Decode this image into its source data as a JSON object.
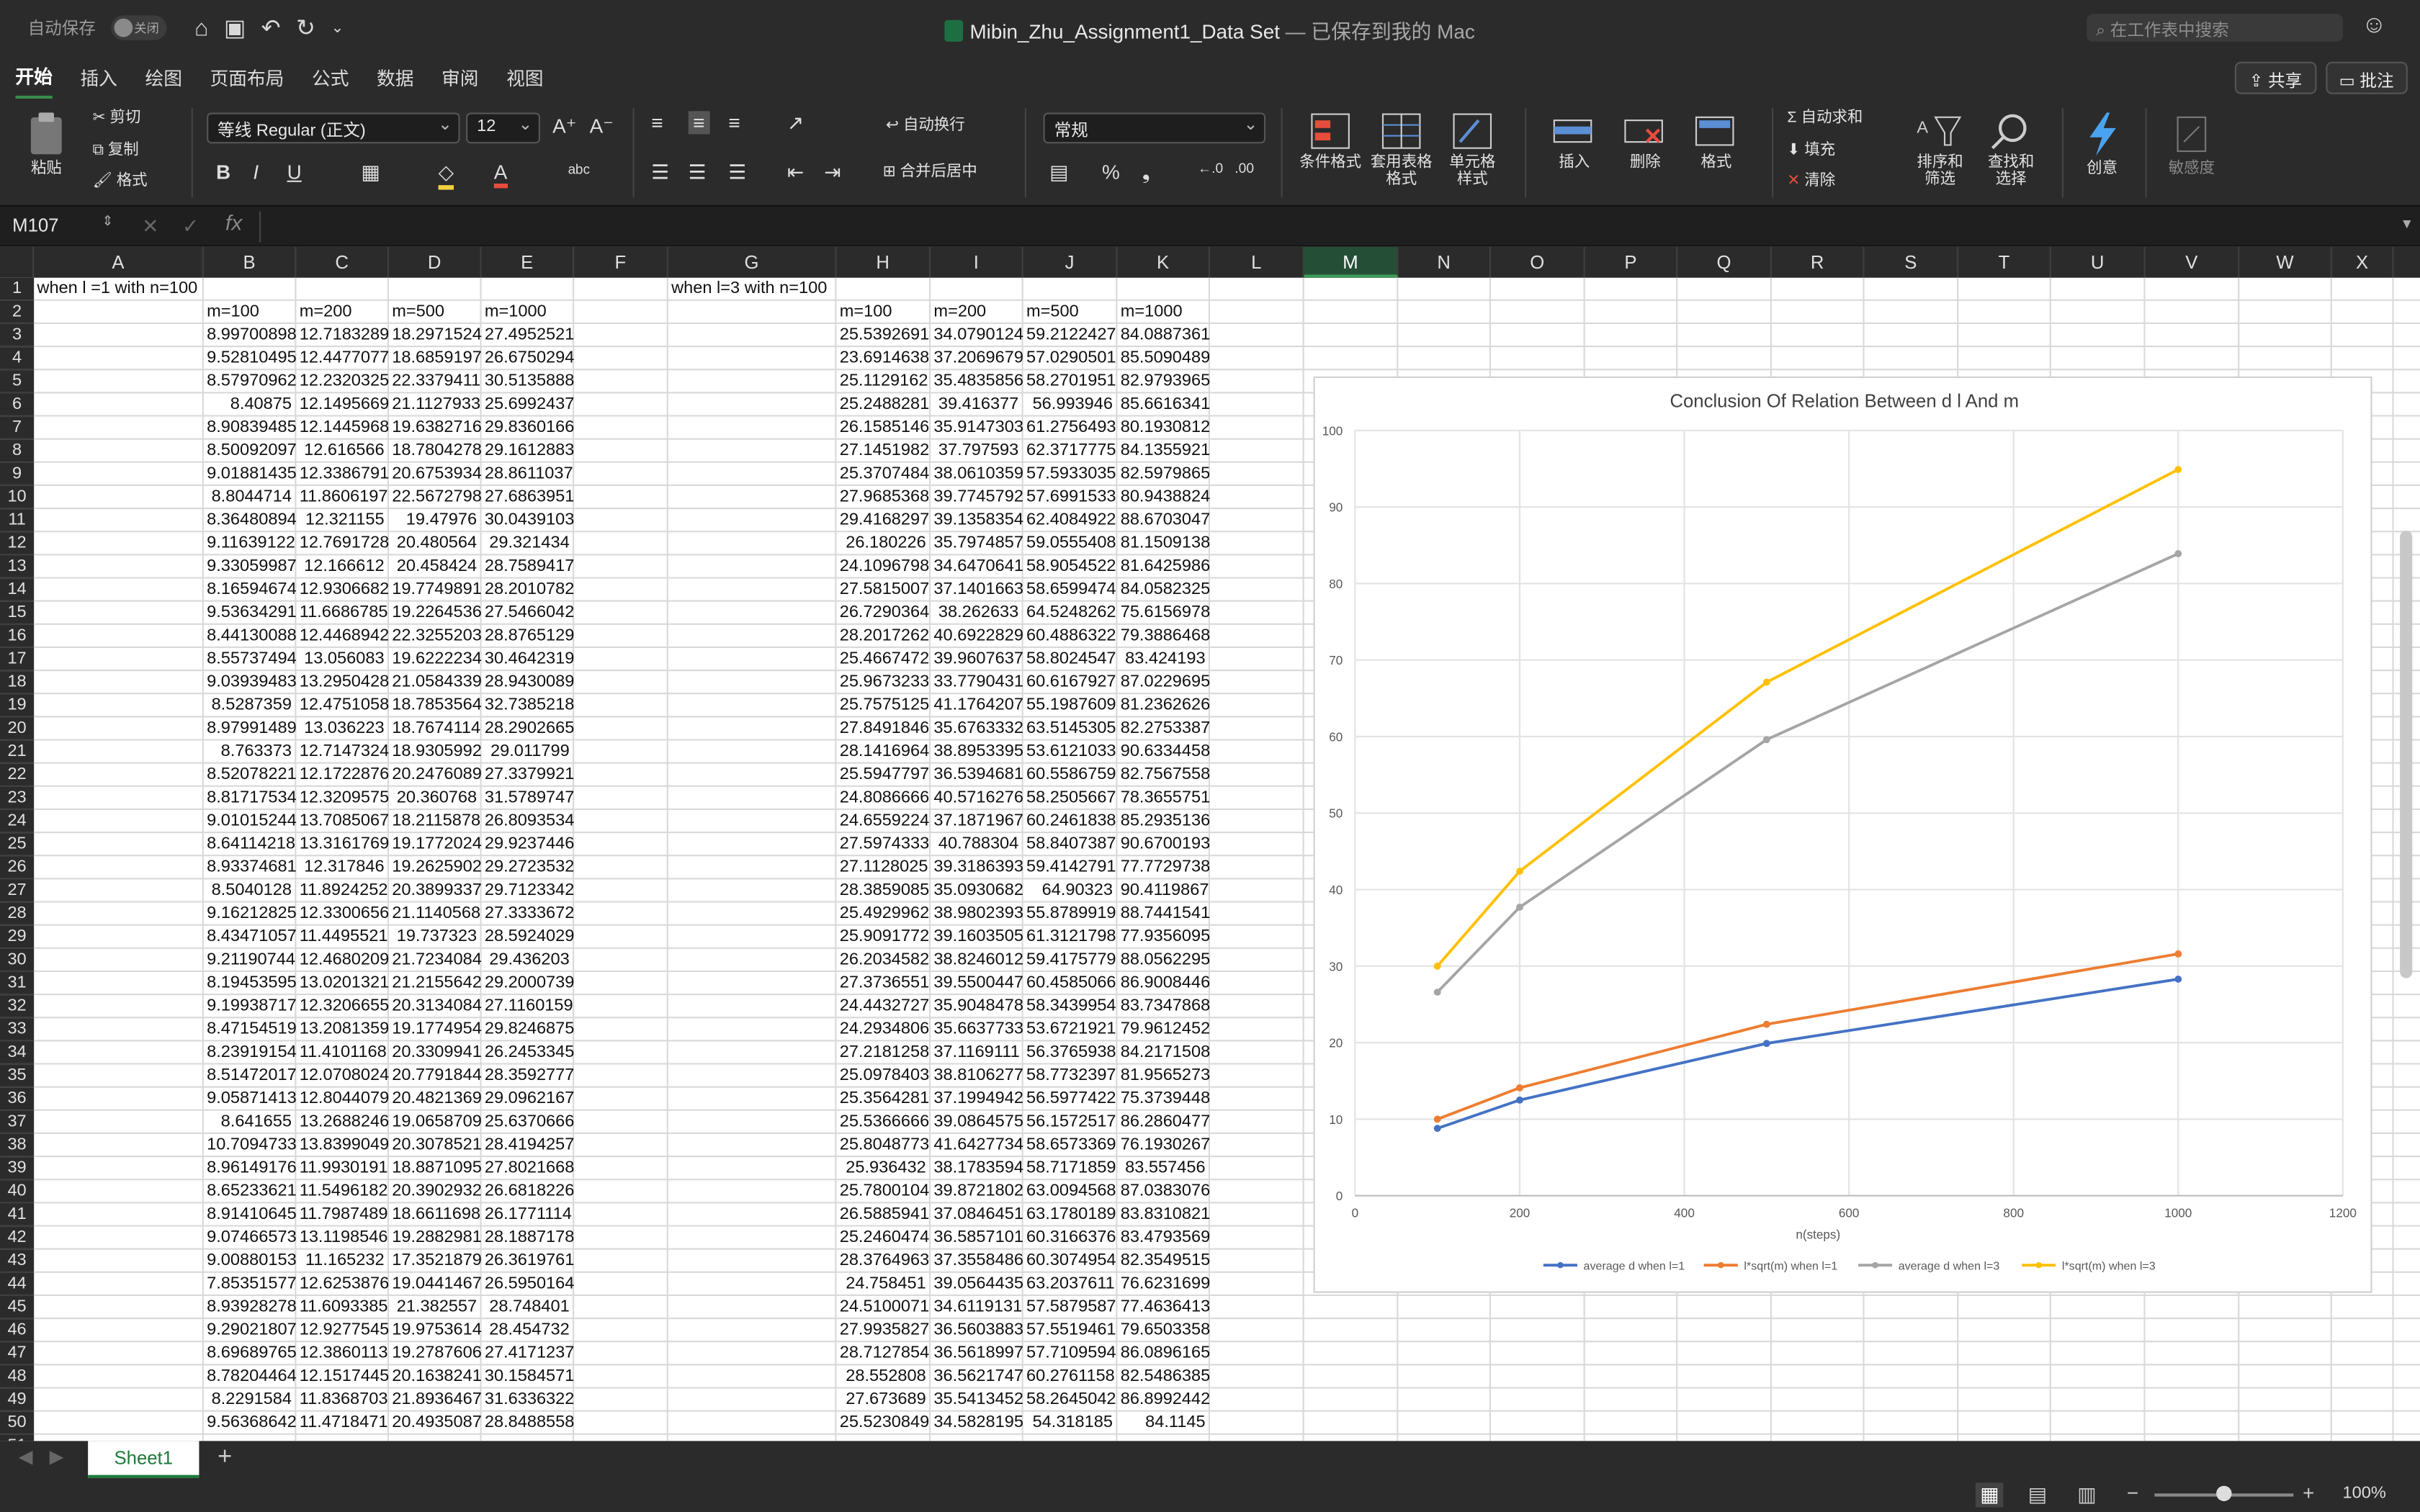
{
  "titlebar": {
    "autosave": "自动保存",
    "autosave_state": "关闭",
    "doc_name": "Mibin_Zhu_Assignment1_Data Set",
    "doc_status": " — 已保存到我的 Mac",
    "search_placeholder": "在工作表中搜索"
  },
  "tabs": [
    "开始",
    "插入",
    "绘图",
    "页面布局",
    "公式",
    "数据",
    "审阅",
    "视图"
  ],
  "tab_right": {
    "share": "共享",
    "comment": "批注"
  },
  "ribbon": {
    "paste": "粘贴",
    "cut": "剪切",
    "copy": "复制",
    "format_painter": "格式",
    "font_name": "等线 Regular (正文)",
    "font_size": "12",
    "wrap": "自动换行",
    "merge": "合并后居中",
    "number_format": "常规",
    "cond_format": "条件格式",
    "table_format": "套用表格格式",
    "cell_style": "单元格样式",
    "insert": "插入",
    "delete": "删除",
    "format": "格式",
    "autosum": "自动求和",
    "fill": "填充",
    "clear": "清除",
    "sort_filter": "排序和筛选",
    "find_select": "查找和选择",
    "ideas": "创意",
    "sensitivity": "敏感度"
  },
  "formula_bar": {
    "name_box": "M107",
    "fx": "fx"
  },
  "columns": [
    "A",
    "B",
    "C",
    "D",
    "E",
    "F",
    "G",
    "H",
    "I",
    "J",
    "K",
    "L",
    "M",
    "N",
    "O",
    "P",
    "Q",
    "R",
    "S",
    "T",
    "U",
    "V",
    "W",
    "X"
  ],
  "rows": [
    "1",
    "2",
    "3",
    "4",
    "5",
    "6",
    "7",
    "8",
    "9",
    "10",
    "11",
    "12",
    "13",
    "14",
    "15",
    "16",
    "17",
    "18",
    "19",
    "20",
    "21",
    "22",
    "23",
    "24",
    "25",
    "26",
    "27",
    "28",
    "29",
    "30",
    "31",
    "32",
    "33",
    "34",
    "35",
    "36",
    "37",
    "38",
    "39",
    "40",
    "41",
    "42",
    "43",
    "44",
    "45",
    "46",
    "47",
    "48",
    "49",
    "50",
    "51"
  ],
  "labels": {
    "a1": "when l =1 with n=100",
    "g1": "when l=3 with n=100",
    "hdr_left": [
      "m=100",
      "m=200",
      "m=500",
      "m=1000"
    ],
    "hdr_right": [
      "m=100",
      "m=200",
      "m=500",
      "m=1000"
    ]
  },
  "data_left": [
    [
      "8.99700898",
      "12.7183289",
      "18.2971524",
      "27.4952521"
    ],
    [
      "9.52810495",
      "12.4477077",
      "18.6859197",
      "26.6750294"
    ],
    [
      "8.57970962",
      "12.2320325",
      "22.3379411",
      "30.5135888"
    ],
    [
      "8.40875",
      "12.1495669",
      "21.1127933",
      "25.6992437"
    ],
    [
      "8.90839485",
      "12.1445968",
      "19.6382716",
      "29.8360166"
    ],
    [
      "8.50092097",
      "12.616566",
      "18.7804278",
      "29.1612883"
    ],
    [
      "9.01881435",
      "12.3386791",
      "20.6753934",
      "28.8611037"
    ],
    [
      "8.8044714",
      "11.8606197",
      "22.5672798",
      "27.6863951"
    ],
    [
      "8.36480894",
      "12.321155",
      "19.47976",
      "30.0439103"
    ],
    [
      "9.11639122",
      "12.7691728",
      "20.480564",
      "29.321434"
    ],
    [
      "9.33059987",
      "12.166612",
      "20.458424",
      "28.7589417"
    ],
    [
      "8.16594674",
      "12.9306682",
      "19.7749891",
      "28.2010782"
    ],
    [
      "9.53634291",
      "11.6686785",
      "19.2264536",
      "27.5466042"
    ],
    [
      "8.44130088",
      "12.4468942",
      "22.3255203",
      "28.8765129"
    ],
    [
      "8.55737494",
      "13.056083",
      "19.6222234",
      "30.4642319"
    ],
    [
      "9.03939483",
      "13.2950428",
      "21.0584339",
      "28.9430089"
    ],
    [
      "8.5287359",
      "12.4751058",
      "18.7853564",
      "32.7385218"
    ],
    [
      "8.97991489",
      "13.036223",
      "18.7674114",
      "28.2902665"
    ],
    [
      "8.763373",
      "12.7147324",
      "18.9305992",
      "29.011799"
    ],
    [
      "8.52078221",
      "12.1722876",
      "20.2476089",
      "27.3379921"
    ],
    [
      "8.81717534",
      "12.3209575",
      "20.360768",
      "31.5789747"
    ],
    [
      "9.01015244",
      "13.7085067",
      "18.2115878",
      "26.8093534"
    ],
    [
      "8.64114218",
      "13.3161769",
      "19.1772024",
      "29.9237446"
    ],
    [
      "8.93374681",
      "12.317846",
      "19.2625902",
      "29.2723532"
    ],
    [
      "8.5040128",
      "11.8924252",
      "20.3899337",
      "29.7123342"
    ],
    [
      "9.16212825",
      "12.3300656",
      "21.1140568",
      "27.3333672"
    ],
    [
      "8.43471057",
      "11.4495521",
      "19.737323",
      "28.5924029"
    ],
    [
      "9.21190744",
      "12.4680209",
      "21.7234084",
      "29.436203"
    ],
    [
      "8.19453595",
      "13.0201321",
      "21.2155642",
      "29.2000739"
    ],
    [
      "9.19938717",
      "12.3206655",
      "20.3134084",
      "27.1160159"
    ],
    [
      "8.47154519",
      "13.2081359",
      "19.1774954",
      "29.8246875"
    ],
    [
      "8.23919154",
      "11.4101168",
      "20.3309941",
      "26.2453345"
    ],
    [
      "8.51472017",
      "12.0708024",
      "20.7791844",
      "28.3592777"
    ],
    [
      "9.05871413",
      "12.8044079",
      "20.4821369",
      "29.0962167"
    ],
    [
      "8.641655",
      "13.2688246",
      "19.0658709",
      "25.6370666"
    ],
    [
      "10.7094733",
      "13.8399049",
      "20.3078521",
      "28.4194257"
    ],
    [
      "8.96149176",
      "11.9930191",
      "18.8871095",
      "27.8021668"
    ],
    [
      "8.65233621",
      "11.5496182",
      "20.3902932",
      "26.6818226"
    ],
    [
      "8.91410645",
      "11.7987489",
      "18.6611698",
      "26.1771114"
    ],
    [
      "9.07466573",
      "13.1198546",
      "19.2882981",
      "28.1887178"
    ],
    [
      "9.00880153",
      "11.165232",
      "17.3521879",
      "26.3619761"
    ],
    [
      "7.85351577",
      "12.6253876",
      "19.0441467",
      "26.5950164"
    ],
    [
      "8.93928278",
      "11.6093385",
      "21.382557",
      "28.748401"
    ],
    [
      "9.29021807",
      "12.9277545",
      "19.9753614",
      "28.454732"
    ],
    [
      "8.69689765",
      "12.3860113",
      "19.2787606",
      "27.4171237"
    ],
    [
      "8.78204464",
      "12.1517445",
      "20.1638241",
      "30.1584571"
    ],
    [
      "8.2291584",
      "11.8368703",
      "21.8936467",
      "31.6336322"
    ],
    [
      "9.56368642",
      "11.4718471",
      "20.4935087",
      "28.8488558"
    ]
  ],
  "data_right": [
    [
      "25.5392691",
      "34.0790124",
      "59.2122427",
      "84.0887361"
    ],
    [
      "23.6914638",
      "37.2069679",
      "57.0290501",
      "85.5090489"
    ],
    [
      "25.1129162",
      "35.4835856",
      "58.2701951",
      "82.9793965"
    ],
    [
      "25.2488281",
      "39.416377",
      "56.993946",
      "85.6616341"
    ],
    [
      "26.1585146",
      "35.9147303",
      "61.2756493",
      "80.1930812"
    ],
    [
      "27.1451982",
      "37.797593",
      "62.3717775",
      "84.1355921"
    ],
    [
      "25.3707484",
      "38.0610359",
      "57.5933035",
      "82.5979865"
    ],
    [
      "27.9685368",
      "39.7745792",
      "57.6991533",
      "80.9438824"
    ],
    [
      "29.4168297",
      "39.1358354",
      "62.4084922",
      "88.6703047"
    ],
    [
      "26.180226",
      "35.7974857",
      "59.0555408",
      "81.1509138"
    ],
    [
      "24.1096798",
      "34.6470641",
      "58.9054522",
      "81.6425986"
    ],
    [
      "27.5815007",
      "37.1401663",
      "58.6599474",
      "84.0582325"
    ],
    [
      "26.7290364",
      "38.262633",
      "64.5248262",
      "75.6156978"
    ],
    [
      "28.2017262",
      "40.6922829",
      "60.4886322",
      "79.3886468"
    ],
    [
      "25.4667472",
      "39.9607637",
      "58.8024547",
      "83.424193"
    ],
    [
      "25.9673233",
      "33.7790431",
      "60.6167927",
      "87.0229695"
    ],
    [
      "25.7575125",
      "41.1764207",
      "55.1987609",
      "81.2362626"
    ],
    [
      "27.8491846",
      "35.6763332",
      "63.5145305",
      "82.2753387"
    ],
    [
      "28.1416964",
      "38.8953395",
      "53.6121033",
      "90.6334458"
    ],
    [
      "25.5947797",
      "36.5394681",
      "60.5586759",
      "82.7567558"
    ],
    [
      "24.8086666",
      "40.5716276",
      "58.2505667",
      "78.3655751"
    ],
    [
      "24.6559224",
      "37.1871967",
      "60.2461838",
      "85.2935136"
    ],
    [
      "27.5974333",
      "40.788304",
      "58.8407387",
      "90.6700193"
    ],
    [
      "27.1128025",
      "39.3186393",
      "59.4142791",
      "77.7729738"
    ],
    [
      "28.3859085",
      "35.0930682",
      "64.90323",
      "90.4119867"
    ],
    [
      "25.4929962",
      "38.9802393",
      "55.8789919",
      "88.7441541"
    ],
    [
      "25.9091772",
      "39.1603505",
      "61.3121798",
      "77.9356095"
    ],
    [
      "26.2034582",
      "38.8246012",
      "59.4175779",
      "88.0562295"
    ],
    [
      "27.3736551",
      "39.5500447",
      "60.4585066",
      "86.9008446"
    ],
    [
      "24.4432727",
      "35.9048478",
      "58.3439954",
      "83.7347868"
    ],
    [
      "24.2934806",
      "35.6637733",
      "53.6721921",
      "79.9612452"
    ],
    [
      "27.2181258",
      "37.1169111",
      "56.3765938",
      "84.2171508"
    ],
    [
      "25.0978403",
      "38.8106277",
      "58.7732397",
      "81.9565273"
    ],
    [
      "25.3564281",
      "37.1994942",
      "56.5977422",
      "75.3739448"
    ],
    [
      "25.5366666",
      "39.0864575",
      "56.1572517",
      "86.2860477"
    ],
    [
      "25.8048773",
      "41.6427734",
      "58.6573369",
      "76.1930267"
    ],
    [
      "25.936432",
      "38.1783594",
      "58.7171859",
      "83.557456"
    ],
    [
      "25.7800104",
      "39.8721802",
      "63.0094568",
      "87.0383076"
    ],
    [
      "26.5885941",
      "37.0846451",
      "63.1780189",
      "83.8310821"
    ],
    [
      "25.2460474",
      "36.5857101",
      "60.3166376",
      "83.4793569"
    ],
    [
      "28.3764963",
      "37.3558486",
      "60.3074954",
      "82.3549515"
    ],
    [
      "24.758451",
      "39.0564435",
      "63.2037611",
      "76.6231699"
    ],
    [
      "24.5100071",
      "34.6119131",
      "57.5879587",
      "77.4636413"
    ],
    [
      "27.9935827",
      "36.5603883",
      "57.5519461",
      "79.6503358"
    ],
    [
      "28.7127854",
      "36.5618997",
      "57.7109594",
      "86.0896165"
    ],
    [
      "28.552808",
      "36.5621747",
      "60.2761158",
      "82.5486385"
    ],
    [
      "27.673689",
      "35.5413452",
      "58.2645042",
      "86.8992442"
    ],
    [
      "25.5230849",
      "34.5828195",
      "54.318185",
      "84.1145"
    ]
  ],
  "chart_data": {
    "type": "line",
    "title": "Conclusion Of Relation Between d l And m",
    "xlabel": "n(steps)",
    "ylabel": "",
    "xlim": [
      0,
      1200
    ],
    "ylim": [
      0,
      100
    ],
    "xticks": [
      0,
      200,
      400,
      600,
      800,
      1000,
      1200
    ],
    "yticks": [
      0,
      10,
      20,
      30,
      40,
      50,
      60,
      70,
      80,
      90,
      100
    ],
    "x": [
      100,
      200,
      500,
      1000
    ],
    "grid": true,
    "legend": "bottom",
    "series": [
      {
        "name": "average d when l=1",
        "color": "#4472c4",
        "values": [
          8.8,
          12.5,
          19.9,
          28.3
        ]
      },
      {
        "name": "l*sqrt(m) when l=1",
        "color": "#ed7d31",
        "values": [
          10.0,
          14.1,
          22.4,
          31.6
        ]
      },
      {
        "name": "average d when l=3",
        "color": "#a5a5a5",
        "values": [
          26.6,
          37.7,
          59.6,
          83.9
        ]
      },
      {
        "name": "l*sqrt(m) when l=3",
        "color": "#ffc000",
        "values": [
          30.0,
          42.4,
          67.1,
          94.9
        ]
      }
    ]
  },
  "sheet": {
    "name": "Sheet1"
  },
  "status": {
    "zoom": "100%"
  }
}
